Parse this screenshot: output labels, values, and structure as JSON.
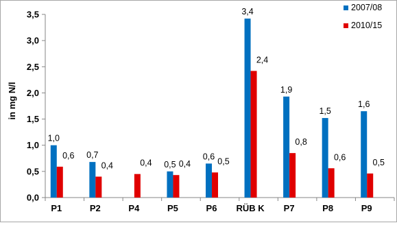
{
  "chart_data": {
    "type": "bar",
    "title": "",
    "xlabel": "",
    "ylabel": "in mg N/l",
    "ylim": [
      0,
      3.5
    ],
    "yticks": [
      "0,0",
      "0,5",
      "1,0",
      "1,5",
      "2,0",
      "2,5",
      "3,0",
      "3,5"
    ],
    "grid": false,
    "legend_position": "top-right",
    "categories": [
      "P1",
      "P2",
      "P4",
      "P5",
      "P6",
      "RÜB K",
      "P7",
      "P8",
      "P9"
    ],
    "series": [
      {
        "name": "2007/08",
        "color": "#0070c0",
        "values": [
          1.0,
          0.68,
          null,
          0.5,
          0.65,
          3.42,
          1.93,
          1.52,
          1.65
        ],
        "labels": [
          "1,0",
          "0,7",
          "",
          "0,5",
          "0,6",
          "3,4",
          "1,9",
          "1,5",
          "1,6"
        ]
      },
      {
        "name": "2010/15",
        "color": "#e00000",
        "values": [
          0.59,
          0.4,
          0.45,
          0.43,
          0.48,
          2.42,
          0.85,
          0.56,
          0.46
        ],
        "labels": [
          "0,6",
          "0,4",
          "0,4",
          "0,4",
          "0,5",
          "2,4",
          "0,8",
          "0,6",
          "0,5"
        ]
      }
    ]
  }
}
